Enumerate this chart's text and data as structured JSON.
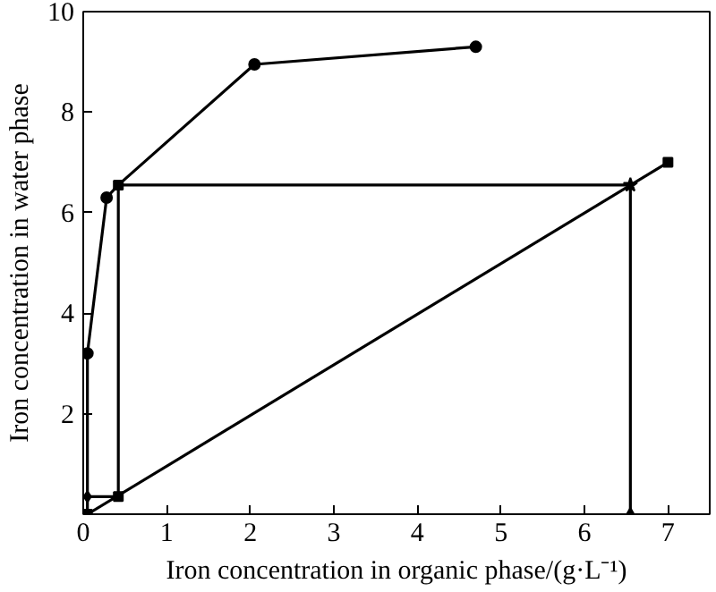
{
  "chart_data": {
    "type": "line",
    "xlabel": "Iron concentration in organic phase/(g·L⁻¹)",
    "ylabel": "Iron concentration in water phase",
    "xlim": [
      0,
      7.5
    ],
    "ylim": [
      0,
      10
    ],
    "xticks": [
      0,
      1,
      2,
      3,
      4,
      5,
      6,
      7
    ],
    "yticks": [
      {
        "value": 0,
        "label": null
      },
      2,
      4,
      6,
      8,
      10
    ],
    "grid": false,
    "series": [
      {
        "marker": "none",
        "color": "#000000",
        "x": [
          0.05,
          0.05,
          0.28,
          0.42,
          2.05,
          4.7
        ],
        "values": [
          0,
          3.2,
          6.3,
          6.55,
          8.95,
          9.3
        ]
      },
      {
        "type": "scatter",
        "marker": "circle",
        "color": "#000000",
        "x": [
          0.05,
          0.28,
          2.05,
          4.7
        ],
        "values": [
          3.2,
          6.3,
          8.95,
          9.3
        ]
      },
      {
        "marker": "square",
        "color": "#000000",
        "x": [
          0.05,
          7
        ],
        "values": [
          0,
          7
        ]
      },
      {
        "marker": "none",
        "color": "#000000",
        "x": [
          6.55,
          6.55,
          0.42,
          0.42,
          0.05
        ],
        "values": [
          0,
          6.55,
          6.55,
          0.35,
          0.35
        ]
      },
      {
        "type": "scatter",
        "marker": "triangle",
        "color": "#000000",
        "x": [
          6.55
        ],
        "values": [
          0
        ]
      },
      {
        "type": "scatter",
        "marker": "diamond",
        "color": "#000000",
        "x": [
          0.05
        ],
        "values": [
          0.35
        ]
      },
      {
        "type": "scatter",
        "marker": "square",
        "color": "#000000",
        "x": [
          0.42,
          0.42
        ],
        "values": [
          6.55,
          0.35
        ]
      },
      {
        "type": "scatter",
        "marker": "star",
        "color": "#000000",
        "x": [
          6.55
        ],
        "values": [
          6.55
        ]
      }
    ]
  }
}
